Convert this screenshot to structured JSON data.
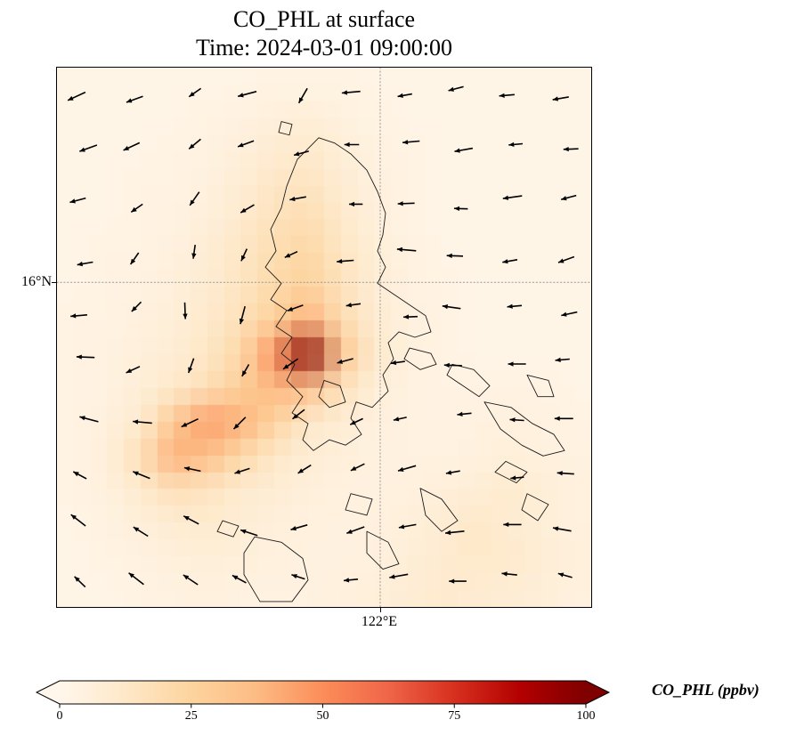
{
  "title": {
    "line1": "CO_PHL at surface",
    "line2": "Time: 2024-03-01 09:00:00"
  },
  "axes": {
    "y_tick": {
      "label": "16°N",
      "frac": 0.398
    },
    "x_tick": {
      "label": "122°E",
      "frac": 0.605
    }
  },
  "colorbar": {
    "label": "CO_PHL (ppbv)",
    "ticks": [
      0,
      25,
      50,
      75,
      100
    ],
    "min": 0,
    "max": 100,
    "extend": "both"
  },
  "colormap": {
    "name": "OrRd",
    "stops": [
      {
        "p": 0.0,
        "c": "#fff7ec"
      },
      {
        "p": 0.125,
        "c": "#fee8c8"
      },
      {
        "p": 0.25,
        "c": "#fdd49e"
      },
      {
        "p": 0.375,
        "c": "#fdbb84"
      },
      {
        "p": 0.5,
        "c": "#fc8d59"
      },
      {
        "p": 0.625,
        "c": "#ef6548"
      },
      {
        "p": 0.75,
        "c": "#d7301f"
      },
      {
        "p": 0.875,
        "c": "#b30000"
      },
      {
        "p": 1.0,
        "c": "#7f0000"
      }
    ]
  },
  "chart_data": {
    "type": "heatmap",
    "variable": "CO_PHL",
    "units": "ppbv",
    "level": "surface",
    "time": "2024-03-01 09:00:00",
    "value_min": 0,
    "value_max": 100,
    "grid": {
      "rows": 16,
      "cols": 16,
      "values": [
        [
          2,
          2,
          2,
          2,
          2,
          2,
          3,
          3,
          3,
          2,
          2,
          2,
          2,
          2,
          2,
          2
        ],
        [
          2,
          2,
          2,
          2,
          3,
          4,
          6,
          7,
          5,
          3,
          2,
          2,
          2,
          2,
          2,
          2
        ],
        [
          2,
          2,
          2,
          3,
          4,
          6,
          9,
          11,
          7,
          4,
          3,
          2,
          2,
          2,
          2,
          2
        ],
        [
          2,
          2,
          3,
          3,
          5,
          8,
          13,
          15,
          9,
          5,
          3,
          2,
          2,
          2,
          2,
          2
        ],
        [
          2,
          2,
          3,
          4,
          6,
          10,
          16,
          19,
          11,
          6,
          3,
          2,
          2,
          2,
          2,
          2
        ],
        [
          2,
          3,
          3,
          5,
          8,
          13,
          19,
          23,
          14,
          7,
          4,
          2,
          2,
          2,
          2,
          2
        ],
        [
          2,
          3,
          4,
          6,
          9,
          14,
          21,
          26,
          16,
          8,
          4,
          3,
          2,
          2,
          2,
          2
        ],
        [
          3,
          3,
          5,
          7,
          11,
          17,
          26,
          40,
          20,
          9,
          5,
          3,
          2,
          2,
          2,
          2
        ],
        [
          3,
          4,
          6,
          8,
          13,
          22,
          48,
          100,
          32,
          11,
          5,
          3,
          2,
          2,
          2,
          2
        ],
        [
          3,
          4,
          7,
          11,
          18,
          28,
          38,
          35,
          16,
          7,
          4,
          3,
          3,
          3,
          3,
          2
        ],
        [
          3,
          5,
          10,
          30,
          45,
          40,
          25,
          12,
          8,
          5,
          4,
          3,
          4,
          5,
          4,
          3
        ],
        [
          3,
          6,
          18,
          40,
          35,
          22,
          12,
          8,
          6,
          4,
          4,
          4,
          5,
          6,
          5,
          4
        ],
        [
          3,
          5,
          10,
          18,
          15,
          10,
          8,
          6,
          5,
          4,
          5,
          6,
          7,
          10,
          7,
          5
        ],
        [
          2,
          4,
          6,
          9,
          10,
          8,
          6,
          5,
          4,
          5,
          6,
          8,
          12,
          9,
          7,
          5
        ],
        [
          2,
          3,
          4,
          6,
          7,
          6,
          5,
          4,
          4,
          5,
          7,
          9,
          12,
          11,
          8,
          6
        ],
        [
          2,
          2,
          3,
          4,
          5,
          4,
          4,
          4,
          5,
          6,
          8,
          10,
          9,
          8,
          7,
          5
        ]
      ]
    },
    "wind_quiver": {
      "rows": 10,
      "cols": 10,
      "direction_deg_math": [
        [
          205,
          200,
          215,
          195,
          240,
          185,
          190,
          195,
          185,
          190
        ],
        [
          200,
          205,
          220,
          200,
          195,
          180,
          185,
          190,
          185,
          182
        ],
        [
          195,
          215,
          235,
          210,
          190,
          180,
          182,
          178,
          188,
          195
        ],
        [
          190,
          235,
          262,
          245,
          205,
          185,
          175,
          178,
          190,
          200
        ],
        [
          185,
          225,
          272,
          255,
          200,
          188,
          182,
          172,
          185,
          192
        ],
        [
          178,
          205,
          250,
          240,
          215,
          195,
          188,
          178,
          180,
          185
        ],
        [
          165,
          175,
          205,
          225,
          218,
          205,
          192,
          186,
          176,
          180
        ],
        [
          152,
          158,
          168,
          198,
          212,
          206,
          196,
          190,
          185,
          176
        ],
        [
          142,
          148,
          152,
          162,
          196,
          200,
          190,
          186,
          180,
          170
        ],
        [
          136,
          142,
          146,
          152,
          162,
          186,
          190,
          180,
          174,
          164
        ]
      ]
    }
  },
  "map": {
    "coastline_color": "#1b1b1b",
    "coastlines": [
      "M0.49,0.13 L0.52,0.14 L0.55,0.16 L0.58,0.19 L0.60,0.23 L0.615,0.27 L0.61,0.31 L0.60,0.34 L0.615,0.37 L0.60,0.40 L0.63,0.42 L0.66,0.44 L0.69,0.46 L0.70,0.49 L0.67,0.50 L0.64,0.49 L0.62,0.51 L0.63,0.54 L0.61,0.57 L0.62,0.60 L0.59,0.63 L0.56,0.62 L0.55,0.65 L0.57,0.68 L0.54,0.70 L0.51,0.69 L0.48,0.71 L0.46,0.69 L0.47,0.66 L0.44,0.64 L0.46,0.61 L0.43,0.58 L0.445,0.55 L0.42,0.53 L0.44,0.50 L0.41,0.48 L0.43,0.45 L0.40,0.43 L0.42,0.40 L0.39,0.37 L0.41,0.34 L0.40,0.30 L0.42,0.26 L0.43,0.22 L0.45,0.17 Z",
      "M0.50,0.58 L0.53,0.59 L0.54,0.62 L0.51,0.63 L0.49,0.61 Z",
      "M0.42,0.10 L0.44,0.105 L0.435,0.125 L0.415,0.12 Z",
      "M0.66,0.52 L0.70,0.53 L0.71,0.55 L0.68,0.56 L0.65,0.54 Z",
      "M0.74,0.55 L0.78,0.56 L0.81,0.59 L0.79,0.61 L0.76,0.59 L0.73,0.57 Z",
      "M0.80,0.62 L0.85,0.63 L0.89,0.66 L0.93,0.68 L0.95,0.71 L0.91,0.72 L0.87,0.70 L0.83,0.67 Z",
      "M0.88,0.57 L0.92,0.58 L0.93,0.61 L0.90,0.61 Z",
      "M0.84,0.73 L0.88,0.75 L0.86,0.77 L0.82,0.75 Z",
      "M0.55,0.79 L0.59,0.80 L0.58,0.83 L0.54,0.82 Z",
      "M0.37,0.87 L0.42,0.88 L0.46,0.91 L0.47,0.95 L0.44,0.99 L0.38,0.99 L0.35,0.94 L0.35,0.90 Z",
      "M0.31,0.84 L0.34,0.85 L0.33,0.87 L0.30,0.86 Z",
      "M0.58,0.86 L0.62,0.88 L0.64,0.92 L0.61,0.93 L0.58,0.90 Z",
      "M0.68,0.78 L0.72,0.80 L0.75,0.84 L0.72,0.86 L0.69,0.83 Z",
      "M0.88,0.79 L0.92,0.81 L0.90,0.84 L0.87,0.82 Z"
    ]
  }
}
